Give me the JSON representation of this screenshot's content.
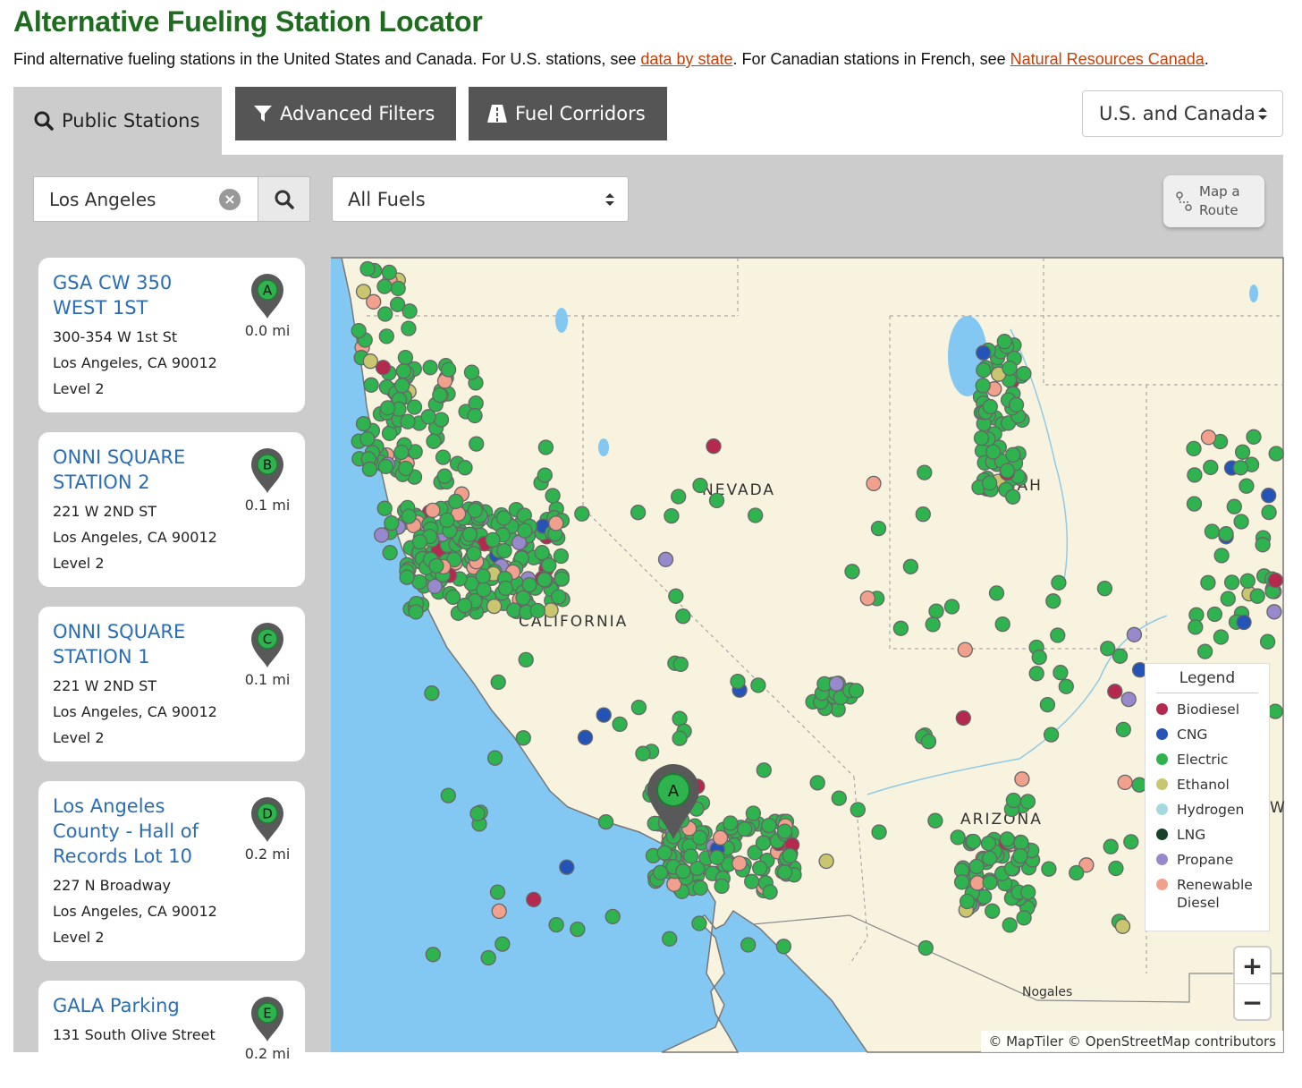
{
  "page": {
    "title": "Alternative Fueling Station Locator",
    "intro_prefix": "Find alternative fueling stations in the United States and Canada. For U.S. stations, see ",
    "intro_link1": "data by state",
    "intro_middle": ". For Canadian stations in French, see ",
    "intro_link2": "Natural Resources Canada",
    "intro_suffix": "."
  },
  "tabs": {
    "public": "Public Stations",
    "advanced": "Advanced Filters",
    "corridors": "Fuel Corridors",
    "country": "U.S. and Canada"
  },
  "search": {
    "value": "Los Angeles",
    "fuel": "All Fuels",
    "map_route": "Map a Route"
  },
  "results": [
    {
      "letter": "A",
      "name": "GSA CW 350 WEST 1ST",
      "address": "300-354 W 1st St",
      "city": "Los Angeles, CA 90012",
      "level": "Level 2",
      "distance": "0.0 mi"
    },
    {
      "letter": "B",
      "name": "ONNI SQUARE STATION 2",
      "address": "221 W 2ND ST",
      "city": "Los Angeles, CA 90012",
      "level": "Level 2",
      "distance": "0.1 mi"
    },
    {
      "letter": "C",
      "name": "ONNI SQUARE STATION 1",
      "address": "221 W 2ND ST",
      "city": "Los Angeles, CA 90012",
      "level": "Level 2",
      "distance": "0.1 mi"
    },
    {
      "letter": "D",
      "name": "Los Angeles County - Hall of Records Lot 10",
      "address": "227 N Broadway",
      "city": "Los Angeles, CA 90012",
      "level": "Level 2",
      "distance": "0.2 mi"
    },
    {
      "letter": "E",
      "name": "GALA Parking",
      "address": "131 South Olive Street",
      "city": "",
      "level": "",
      "distance": "0.2 mi"
    }
  ],
  "map": {
    "labels": {
      "nevada": "NEVADA",
      "utah": "UTAH",
      "california": "CALIFORNIA",
      "arizona": "ARIZONA",
      "nogales": "Nogales",
      "nm_partial": "W"
    },
    "selected_marker": "A",
    "attribution": "© MapTiler © OpenStreetMap contributors",
    "colors": {
      "ocean": "#82c8f2",
      "land": "#f8f3df",
      "marker": "#595959"
    }
  },
  "legend": {
    "title": "Legend",
    "items": [
      {
        "label": "Biodiesel",
        "color": "#b5294e"
      },
      {
        "label": "CNG",
        "color": "#2454b8"
      },
      {
        "label": "Electric",
        "color": "#2fb34e"
      },
      {
        "label": "Ethanol",
        "color": "#c9c66f"
      },
      {
        "label": "Hydrogen",
        "color": "#a6d8e0"
      },
      {
        "label": "LNG",
        "color": "#16422a"
      },
      {
        "label": "Propane",
        "color": "#9888cc"
      },
      {
        "label": "Renewable Diesel",
        "color": "#f2a08e"
      }
    ]
  },
  "zoom": {
    "in": "+",
    "out": "−"
  }
}
